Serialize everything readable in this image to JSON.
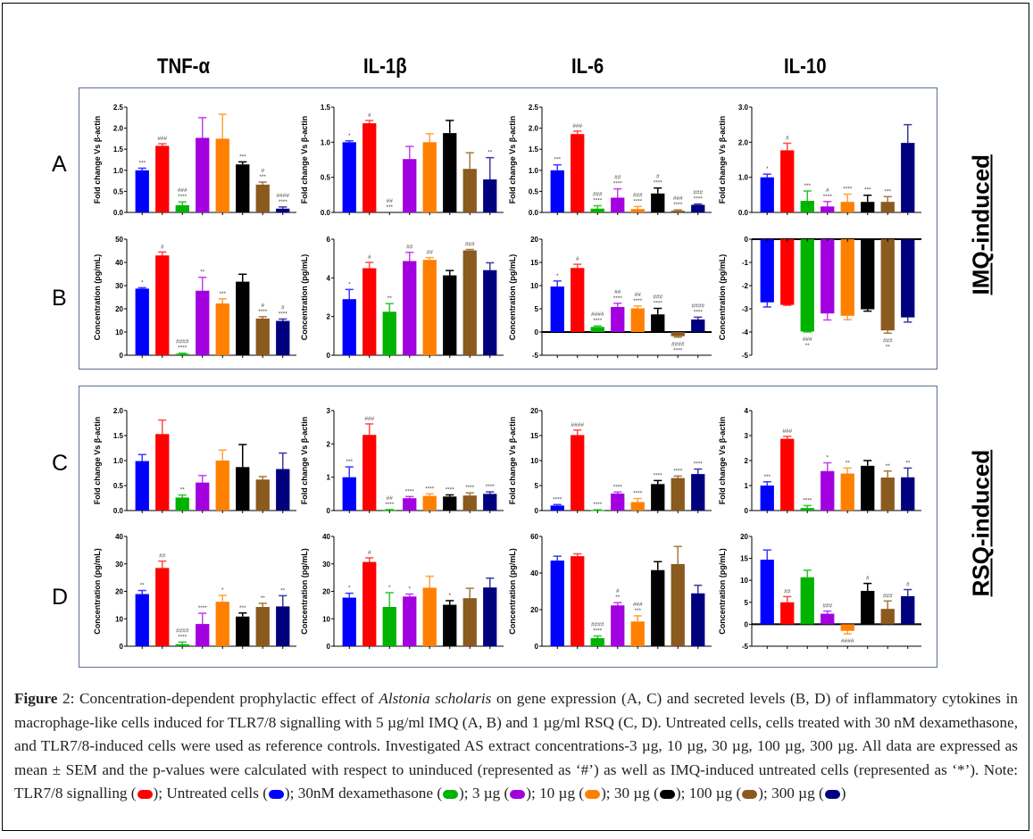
{
  "column_titles": [
    "TNF-α",
    "IL-1β",
    "IL-6",
    "IL-10"
  ],
  "row_labels": [
    "A",
    "B",
    "C",
    "D"
  ],
  "side_labels": [
    "IMQ-induced",
    "RSQ-induced"
  ],
  "legend": [
    {
      "name": "TLR7/8 signalling",
      "color": "#ff0000"
    },
    {
      "name": "Untreated cells",
      "color": "#0000ff"
    },
    {
      "name": "30nM dexamethasone",
      "color": "#00b300"
    },
    {
      "name": "3 µg",
      "color": "#a300e0"
    },
    {
      "name": "10 µg",
      "color": "#ff8000"
    },
    {
      "name": "30 µg",
      "color": "#000000"
    },
    {
      "name": "100 µg",
      "color": "#8b5a1f"
    },
    {
      "name": "300 µg",
      "color": "#00007f"
    }
  ],
  "caption": {
    "label": "Figure",
    "number": " 2:",
    "p1": " Concentration-dependent prophylactic effect of ",
    "species": "Alstonia scholaris",
    "p2": " on gene expression (A, C) and secreted levels (B, D) of inflammatory cytokines in macrophage-like cells induced for TLR7/8 signalling with 5 µg/ml IMQ (A, B) and 1 µg/ml RSQ (C, D). Untreated cells, cells treated with 30 nM dexamethasone, and TLR7/8-induced cells were used as reference controls. Investigated AS extract concentrations-3 µg, 10 µg, 30 µg, 100 µg, 300 µg. All data are expressed as mean ± SEM and the p-values were calculated with respect to uninduced (represented as ‘#’) as well as IMQ-induced untreated cells (represented as ‘*’). Note: ",
    "legend_items": [
      {
        "text": "TLR7/8 signalling (",
        "color": "#ff0000",
        "sep": "); "
      },
      {
        "text": "Untreated cells (",
        "color": "#0000ff",
        "sep": "); "
      },
      {
        "text": "30nM dexamethasone (",
        "color": "#00b300",
        "sep": "); "
      },
      {
        "text": "3 µg (",
        "color": "#a300e0",
        "sep": "); "
      },
      {
        "text": "10 µg (",
        "color": "#ff8000",
        "sep": "); "
      },
      {
        "text": "30 µg (",
        "color": "#000000",
        "sep": "); "
      },
      {
        "text": "100 µg (",
        "color": "#8b5a1f",
        "sep": "); "
      },
      {
        "text": "300 µg (",
        "color": "#00007f",
        "sep": ")"
      }
    ]
  },
  "chart_data": [
    {
      "type": "bar",
      "id": "A-TNF",
      "row": "A",
      "title": "TNF-α",
      "ylabel": "Fold change Vs β-actin",
      "ylim": [
        0,
        2.5
      ],
      "yticks": [
        0,
        0.5,
        1.0,
        1.5,
        2.0,
        2.5
      ],
      "tickfmt": 1,
      "categories": [
        "Untreated",
        "TLR7/8",
        "Dexa",
        "3 µg",
        "10 µg",
        "30 µg",
        "100 µg",
        "300 µg"
      ],
      "values": [
        1.0,
        1.58,
        0.17,
        1.77,
        1.75,
        1.14,
        0.66,
        0.09
      ],
      "errors": [
        0.05,
        0.05,
        0.08,
        0.48,
        0.58,
        0.06,
        0.06,
        0.04
      ],
      "annotations": [
        [
          "***"
        ],
        [
          "###"
        ],
        [
          "###",
          "****"
        ],
        [],
        [],
        [
          "***"
        ],
        [
          "#",
          "***"
        ],
        [
          "####",
          "****"
        ]
      ]
    },
    {
      "type": "bar",
      "id": "A-IL1b",
      "row": "A",
      "title": "IL-1β",
      "ylabel": "Fold change Vs β-actin",
      "ylim": [
        0,
        1.5
      ],
      "yticks": [
        0,
        0.5,
        1.0,
        1.5
      ],
      "tickfmt": 1,
      "categories": [
        "Untreated",
        "TLR7/8",
        "Dexa",
        "3 µg",
        "10 µg",
        "30 µg",
        "100 µg",
        "300 µg"
      ],
      "values": [
        1.0,
        1.27,
        0.0,
        0.76,
        1.0,
        1.13,
        0.62,
        0.47
      ],
      "errors": [
        0.02,
        0.04,
        0,
        0.18,
        0.12,
        0.18,
        0.23,
        0.31
      ],
      "annotations": [
        [
          "*"
        ],
        [
          "#"
        ],
        [
          "##",
          "***"
        ],
        [],
        [],
        [],
        [],
        [
          "**"
        ]
      ]
    },
    {
      "type": "bar",
      "id": "A-IL6",
      "row": "A",
      "title": "IL-6",
      "ylabel": "Fold change Vs β-actin",
      "ylim": [
        0,
        2.5
      ],
      "yticks": [
        0,
        0.5,
        1.0,
        1.5,
        2.0,
        2.5
      ],
      "tickfmt": 1,
      "categories": [
        "Untreated",
        "TLR7/8",
        "Dexa",
        "3 µg",
        "10 µg",
        "30 µg",
        "100 µg",
        "300 µg"
      ],
      "values": [
        1.0,
        1.86,
        0.09,
        0.35,
        0.08,
        0.45,
        0.04,
        0.18
      ],
      "errors": [
        0.13,
        0.07,
        0.07,
        0.21,
        0.06,
        0.13,
        0.02,
        0.02
      ],
      "annotations": [
        [
          "***"
        ],
        [
          "###"
        ],
        [
          "###",
          "****"
        ],
        [
          "##",
          "****"
        ],
        [
          "###",
          "****"
        ],
        [
          "#",
          "****"
        ],
        [
          "###",
          "****"
        ],
        [
          "###",
          "****"
        ]
      ]
    },
    {
      "type": "bar",
      "id": "A-IL10",
      "row": "A",
      "title": "IL-10",
      "ylabel": "Fold change Vs β-actin",
      "ylim": [
        0,
        3.0
      ],
      "yticks": [
        0,
        1.0,
        2.0,
        3.0
      ],
      "tickfmt": 1,
      "categories": [
        "Untreated",
        "TLR7/8",
        "Dexa",
        "3 µg",
        "10 µg",
        "30 µg",
        "100 µg",
        "300 µg"
      ],
      "values": [
        1.0,
        1.77,
        0.33,
        0.17,
        0.3,
        0.3,
        0.3,
        1.98
      ],
      "errors": [
        0.09,
        0.2,
        0.28,
        0.14,
        0.22,
        0.19,
        0.15,
        0.52
      ],
      "annotations": [
        [
          "*"
        ],
        [
          "#"
        ],
        [
          "***"
        ],
        [
          "#",
          "****"
        ],
        [
          "****"
        ],
        [
          "***"
        ],
        [
          "***"
        ],
        []
      ]
    },
    {
      "type": "bar",
      "id": "B-TNF",
      "row": "B",
      "title": "TNF-α",
      "ylabel": "Concentration (pg/mL)",
      "ylim": [
        0,
        50
      ],
      "yticks": [
        0,
        10,
        20,
        30,
        40,
        50
      ],
      "tickfmt": 0,
      "categories": [
        "Untreated",
        "TLR7/8",
        "Dexa",
        "3 µg",
        "10 µg",
        "30 µg",
        "100 µg",
        "300 µg"
      ],
      "values": [
        28.7,
        43,
        0.6,
        27.8,
        22.3,
        31.7,
        15.8,
        14.8
      ],
      "errors": [
        0.4,
        1.5,
        0.3,
        5.8,
        2,
        3.2,
        0.8,
        0.8
      ],
      "annotations": [
        [
          "*"
        ],
        [
          "#"
        ],
        [
          "####",
          "****"
        ],
        [
          "**"
        ],
        [
          "***"
        ],
        [],
        [
          "#",
          "****"
        ],
        [
          "#",
          "****"
        ]
      ]
    },
    {
      "type": "bar",
      "id": "B-IL1b",
      "row": "B",
      "title": "IL-1β",
      "ylabel": "Concentration (pg/mL)",
      "ylim": [
        0,
        6
      ],
      "yticks": [
        0,
        2,
        4,
        6
      ],
      "tickfmt": 0,
      "categories": [
        "Untreated",
        "TLR7/8",
        "Dexa",
        "3 µg",
        "10 µg",
        "30 µg",
        "100 µg",
        "300 µg"
      ],
      "values": [
        2.9,
        4.5,
        2.25,
        4.87,
        4.93,
        4.13,
        5.42,
        4.4
      ],
      "errors": [
        0.5,
        0.3,
        0.42,
        0.45,
        0.12,
        0.25,
        0.05,
        0.38
      ],
      "annotations": [
        [
          "*"
        ],
        [
          "#"
        ],
        [
          "**"
        ],
        [
          "##"
        ],
        [
          "##"
        ],
        [],
        [
          "###"
        ],
        []
      ]
    },
    {
      "type": "bar",
      "id": "B-IL6",
      "row": "B",
      "title": "IL-6",
      "ylabel": "Concentration (pg/mL)",
      "ylim": [
        -5,
        20
      ],
      "yticks": [
        -5,
        0,
        5,
        10,
        15,
        20
      ],
      "tickfmt": 0,
      "categories": [
        "Untreated",
        "TLR7/8",
        "Dexa",
        "3 µg",
        "10 µg",
        "30 µg",
        "100 µg",
        "300 µg"
      ],
      "values": [
        9.8,
        13.8,
        1.1,
        5.4,
        5.1,
        3.8,
        -0.9,
        2.7
      ],
      "errors": [
        1.2,
        0.8,
        0.2,
        0.8,
        0.5,
        1.3,
        0.2,
        0.5
      ],
      "annotations": [
        [
          "*"
        ],
        [
          "#"
        ],
        [
          "####",
          "****"
        ],
        [
          "##",
          "****"
        ],
        [
          "##",
          "****"
        ],
        [
          "###",
          "****"
        ],
        [
          "####",
          "****"
        ],
        [
          "####",
          "****"
        ]
      ]
    },
    {
      "type": "bar",
      "id": "B-IL10",
      "row": "B",
      "title": "IL-10",
      "ylabel": "Concentration (pg/mL)",
      "ylim": [
        -5,
        0
      ],
      "yticks": [
        -5,
        -4,
        -3,
        -2,
        -1,
        0
      ],
      "tickfmt": 0,
      "categories": [
        "Untreated",
        "TLR7/8",
        "Dexa",
        "3 µg",
        "10 µg",
        "30 µg",
        "100 µg",
        "300 µg"
      ],
      "values": [
        -2.72,
        -2.83,
        -3.98,
        -3.2,
        -3.3,
        -3.02,
        -3.93,
        -3.37
      ],
      "errors": [
        0.2,
        0.02,
        0.02,
        0.28,
        0.17,
        0.08,
        0.12,
        0.2
      ],
      "annotations": [
        [],
        [],
        [
          "###",
          "**"
        ],
        [],
        [],
        [],
        [
          "###",
          "**"
        ],
        []
      ]
    },
    {
      "type": "bar",
      "id": "C-TNF",
      "row": "C",
      "title": "TNF-α",
      "ylabel": "Fold change Vs β-actin",
      "ylim": [
        0,
        2.0
      ],
      "yticks": [
        0,
        0.5,
        1.0,
        1.5,
        2.0
      ],
      "tickfmt": 1,
      "categories": [
        "Untreated",
        "TLR7/8",
        "Dexa",
        "3 µg",
        "10 µg",
        "30 µg",
        "100 µg",
        "300 µg"
      ],
      "values": [
        0.99,
        1.53,
        0.26,
        0.56,
        1.0,
        0.87,
        0.62,
        0.83
      ],
      "errors": [
        0.13,
        0.28,
        0.05,
        0.14,
        0.21,
        0.45,
        0.06,
        0.32
      ],
      "annotations": [
        [],
        [],
        [
          "**"
        ],
        [],
        [],
        [],
        [],
        []
      ]
    },
    {
      "type": "bar",
      "id": "C-IL1b",
      "row": "C",
      "title": "IL-1β",
      "ylabel": "Fold change Vs β-actin",
      "ylim": [
        0,
        3
      ],
      "yticks": [
        0,
        1,
        2,
        3
      ],
      "tickfmt": 0,
      "categories": [
        "Untreated",
        "TLR7/8",
        "Dexa",
        "3 µg",
        "10 µg",
        "30 µg",
        "100 µg",
        "300 µg"
      ],
      "values": [
        1.0,
        2.27,
        0.02,
        0.37,
        0.44,
        0.42,
        0.45,
        0.5
      ],
      "errors": [
        0.31,
        0.33,
        0.01,
        0.05,
        0.06,
        0.05,
        0.08,
        0.06
      ],
      "annotations": [
        [
          "***"
        ],
        [
          "###"
        ],
        [
          "##",
          "****"
        ],
        [
          "****"
        ],
        [
          "****"
        ],
        [
          "****"
        ],
        [
          "****"
        ],
        [
          "****"
        ]
      ]
    },
    {
      "type": "bar",
      "id": "C-IL6",
      "row": "C",
      "title": "IL-6",
      "ylabel": "Fold change Vs β-actin",
      "ylim": [
        0,
        20
      ],
      "yticks": [
        0,
        5,
        10,
        15,
        20
      ],
      "tickfmt": 0,
      "categories": [
        "Untreated",
        "TLR7/8",
        "Dexa",
        "3 µg",
        "10 µg",
        "30 µg",
        "100 µg",
        "300 µg"
      ],
      "values": [
        1.0,
        15.1,
        0.1,
        3.4,
        1.7,
        5.3,
        6.5,
        7.3
      ],
      "errors": [
        0.2,
        1.0,
        0.05,
        0.3,
        0.7,
        0.7,
        0.4,
        1.0
      ],
      "annotations": [
        [
          "****"
        ],
        [
          "####"
        ],
        [
          "****"
        ],
        [
          "****"
        ],
        [
          "****"
        ],
        [
          "****"
        ],
        [
          "****"
        ],
        [
          "****"
        ]
      ]
    },
    {
      "type": "bar",
      "id": "C-IL10",
      "row": "C",
      "title": "IL-10",
      "ylabel": "Fold change Vs β-actin",
      "ylim": [
        0,
        4
      ],
      "yticks": [
        0,
        1,
        2,
        3,
        4
      ],
      "tickfmt": 0,
      "categories": [
        "Untreated",
        "TLR7/8",
        "Dexa",
        "3 µg",
        "10 µg",
        "30 µg",
        "100 µg",
        "300 µg"
      ],
      "values": [
        1.0,
        2.87,
        0.1,
        1.58,
        1.48,
        1.79,
        1.32,
        1.33
      ],
      "errors": [
        0.15,
        0.1,
        0.1,
        0.33,
        0.22,
        0.21,
        0.26,
        0.37
      ],
      "annotations": [
        [
          "***"
        ],
        [
          "###"
        ],
        [
          "****"
        ],
        [
          "*"
        ],
        [
          "**"
        ],
        [],
        [
          "**"
        ],
        [
          "**"
        ]
      ]
    },
    {
      "type": "bar",
      "id": "D-TNF",
      "row": "D",
      "title": "TNF-α",
      "ylabel": "Concentration (pg/mL)",
      "ylim": [
        0,
        40
      ],
      "yticks": [
        0,
        10,
        20,
        30,
        40
      ],
      "tickfmt": 0,
      "categories": [
        "Untreated",
        "TLR7/8",
        "Dexa",
        "3 µg",
        "10 µg",
        "30 µg",
        "100 µg",
        "300 µg"
      ],
      "values": [
        19,
        28.5,
        0.7,
        8.1,
        16.2,
        10.8,
        14.3,
        14.5
      ],
      "errors": [
        1.3,
        2.5,
        0.8,
        3.9,
        2.3,
        1.3,
        1.3,
        3.9
      ],
      "annotations": [
        [
          "**"
        ],
        [
          "##"
        ],
        [
          "####",
          "****"
        ],
        [
          "****"
        ],
        [
          "*"
        ],
        [
          "***"
        ],
        [
          "**"
        ],
        [
          "**"
        ]
      ]
    },
    {
      "type": "bar",
      "id": "D-IL1b",
      "row": "D",
      "title": "IL-1β",
      "ylabel": "Concentration (pg/mL)",
      "ylim": [
        0,
        40
      ],
      "yticks": [
        0,
        10,
        20,
        30,
        40
      ],
      "tickfmt": 0,
      "categories": [
        "Untreated",
        "TLR7/8",
        "Dexa",
        "3 µg",
        "10 µg",
        "30 µg",
        "100 µg",
        "300 µg"
      ],
      "values": [
        17.7,
        30.7,
        14.3,
        18.1,
        21.3,
        15.1,
        17.5,
        21.4
      ],
      "errors": [
        1.6,
        1.5,
        5.2,
        0.9,
        4.2,
        1.5,
        3.6,
        3.4
      ],
      "annotations": [
        [
          "*"
        ],
        [
          "#"
        ],
        [
          "*"
        ],
        [
          "*"
        ],
        [],
        [
          "*"
        ],
        [],
        []
      ]
    },
    {
      "type": "bar",
      "id": "D-IL6",
      "row": "D",
      "title": "IL-6",
      "ylabel": "Concentration (pg/mL)",
      "ylim": [
        0,
        60
      ],
      "yticks": [
        0,
        20,
        40,
        60
      ],
      "tickfmt": 0,
      "categories": [
        "Untreated",
        "TLR7/8",
        "Dexa",
        "3 µg",
        "10 µg",
        "30 µg",
        "100 µg",
        "300 µg"
      ],
      "values": [
        46.8,
        49.2,
        4.4,
        22.3,
        13.5,
        41.6,
        44.9,
        28.9
      ],
      "errors": [
        2.4,
        1.3,
        1.2,
        1.5,
        3.1,
        4.6,
        9.6,
        4.4
      ],
      "annotations": [
        [],
        [],
        [
          "####",
          "****"
        ],
        [
          "#",
          "**"
        ],
        [
          "###",
          "***"
        ],
        [],
        [],
        []
      ]
    },
    {
      "type": "bar",
      "id": "D-IL10",
      "row": "D",
      "title": "IL-10",
      "ylabel": "Concentration (pg/mL)",
      "ylim": [
        -5,
        20
      ],
      "yticks": [
        -5,
        0,
        5,
        10,
        15,
        20
      ],
      "tickfmt": 0,
      "categories": [
        "Untreated",
        "TLR7/8",
        "Dexa",
        "3 µg",
        "10 µg",
        "30 µg",
        "100 µg",
        "300 µg"
      ],
      "values": [
        14.7,
        5.0,
        10.7,
        2.4,
        -1.5,
        7.6,
        3.5,
        6.4
      ],
      "errors": [
        2.2,
        1.3,
        1.6,
        0.6,
        0.7,
        1.7,
        1.8,
        1.5
      ],
      "annotations": [
        [],
        [
          "##"
        ],
        [],
        [
          "###"
        ],
        [
          "####"
        ],
        [
          "#"
        ],
        [
          "###"
        ],
        [
          "#"
        ]
      ]
    }
  ]
}
